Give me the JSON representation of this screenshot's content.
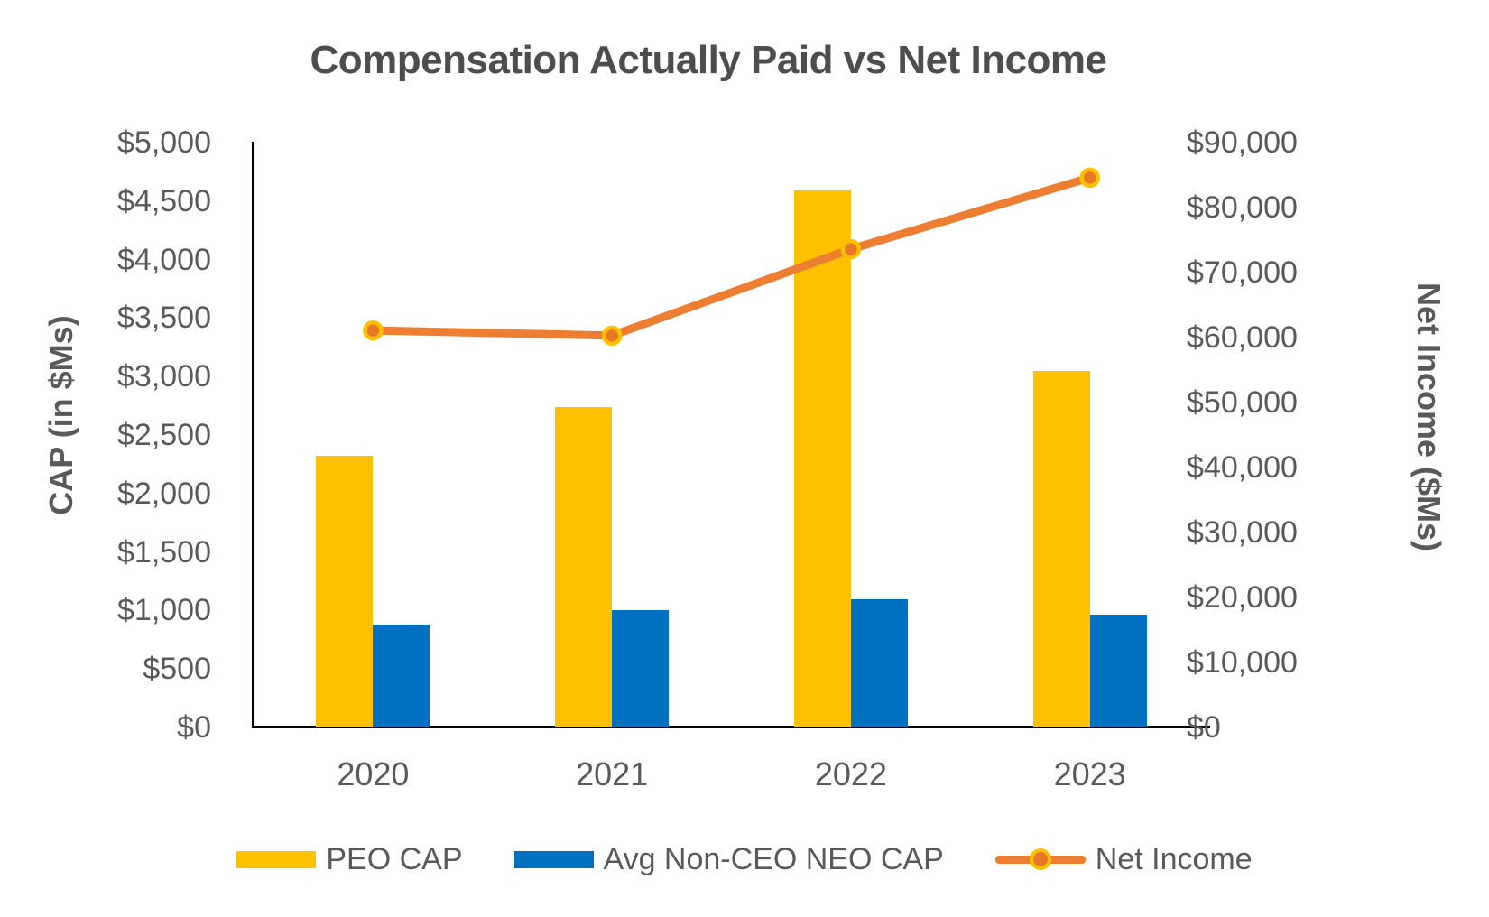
{
  "title": "Compensation Actually Paid vs Net Income",
  "colors": {
    "peo_cap_bar": "#FFC000",
    "neo_cap_bar": "#0070C0",
    "net_income_line": "#ED7D31",
    "net_income_marker_fill": "#E87728",
    "net_income_marker_ring": "#FFC000",
    "text_gray": "#595959",
    "axis_black": "#000000"
  },
  "chart_data": {
    "type": "combo",
    "subtype": "grouped-bars-with-line",
    "grid": false,
    "legend_position": "bottom",
    "categories": [
      "2020",
      "2021",
      "2022",
      "2023"
    ],
    "series": [
      {
        "name": "PEO CAP",
        "type": "bar",
        "axis": "left",
        "color": "#FFC000",
        "values": [
          2320,
          2740,
          4590,
          3050
        ]
      },
      {
        "name": "Avg Non-CEO NEO CAP",
        "type": "bar",
        "axis": "left",
        "color": "#0070C0",
        "values": [
          880,
          1000,
          1095,
          965
        ]
      },
      {
        "name": "Net Income",
        "type": "line",
        "axis": "right",
        "color": "#ED7D31",
        "values": [
          61100,
          60300,
          73600,
          84600
        ]
      }
    ],
    "left_axis": {
      "title": "CAP (in $Ms)",
      "min": 0,
      "max": 5000,
      "step": 500,
      "tick_labels": [
        "$0",
        "$500",
        "$1,000",
        "$1,500",
        "$2,000",
        "$2,500",
        "$3,000",
        "$3,500",
        "$4,000",
        "$4,500",
        "$5,000"
      ]
    },
    "right_axis": {
      "title": "Net Income ($Ms)",
      "min": 0,
      "max": 90000,
      "step": 10000,
      "tick_labels": [
        "$0",
        "$10,000",
        "$20,000",
        "$30,000",
        "$40,000",
        "$50,000",
        "$60,000",
        "$70,000",
        "$80,000",
        "$90,000"
      ]
    },
    "legend": [
      {
        "label": "PEO CAP",
        "swatch": "bar",
        "color": "#FFC000"
      },
      {
        "label": "Avg Non-CEO NEO CAP",
        "swatch": "bar",
        "color": "#0070C0"
      },
      {
        "label": "Net Income",
        "swatch": "line-marker",
        "color": "#ED7D31"
      }
    ]
  }
}
